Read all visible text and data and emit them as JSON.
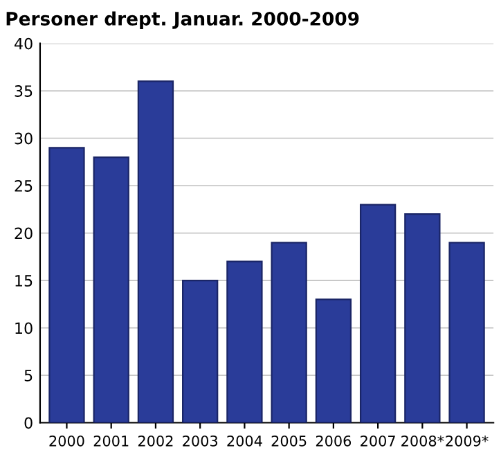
{
  "chart_data": {
    "type": "bar",
    "title": "Personer drept. Januar. 2000-2009",
    "categories": [
      "2000",
      "2001",
      "2002",
      "2003",
      "2004",
      "2005",
      "2006",
      "2007",
      "2008*",
      "2009*"
    ],
    "values": [
      29,
      28,
      36,
      15,
      17,
      19,
      13,
      23,
      22,
      19
    ],
    "color": "#2a3c99",
    "ylim": [
      0,
      40
    ],
    "yticks": [
      0,
      5,
      10,
      15,
      20,
      25,
      30,
      35,
      40
    ],
    "grid": "y"
  }
}
